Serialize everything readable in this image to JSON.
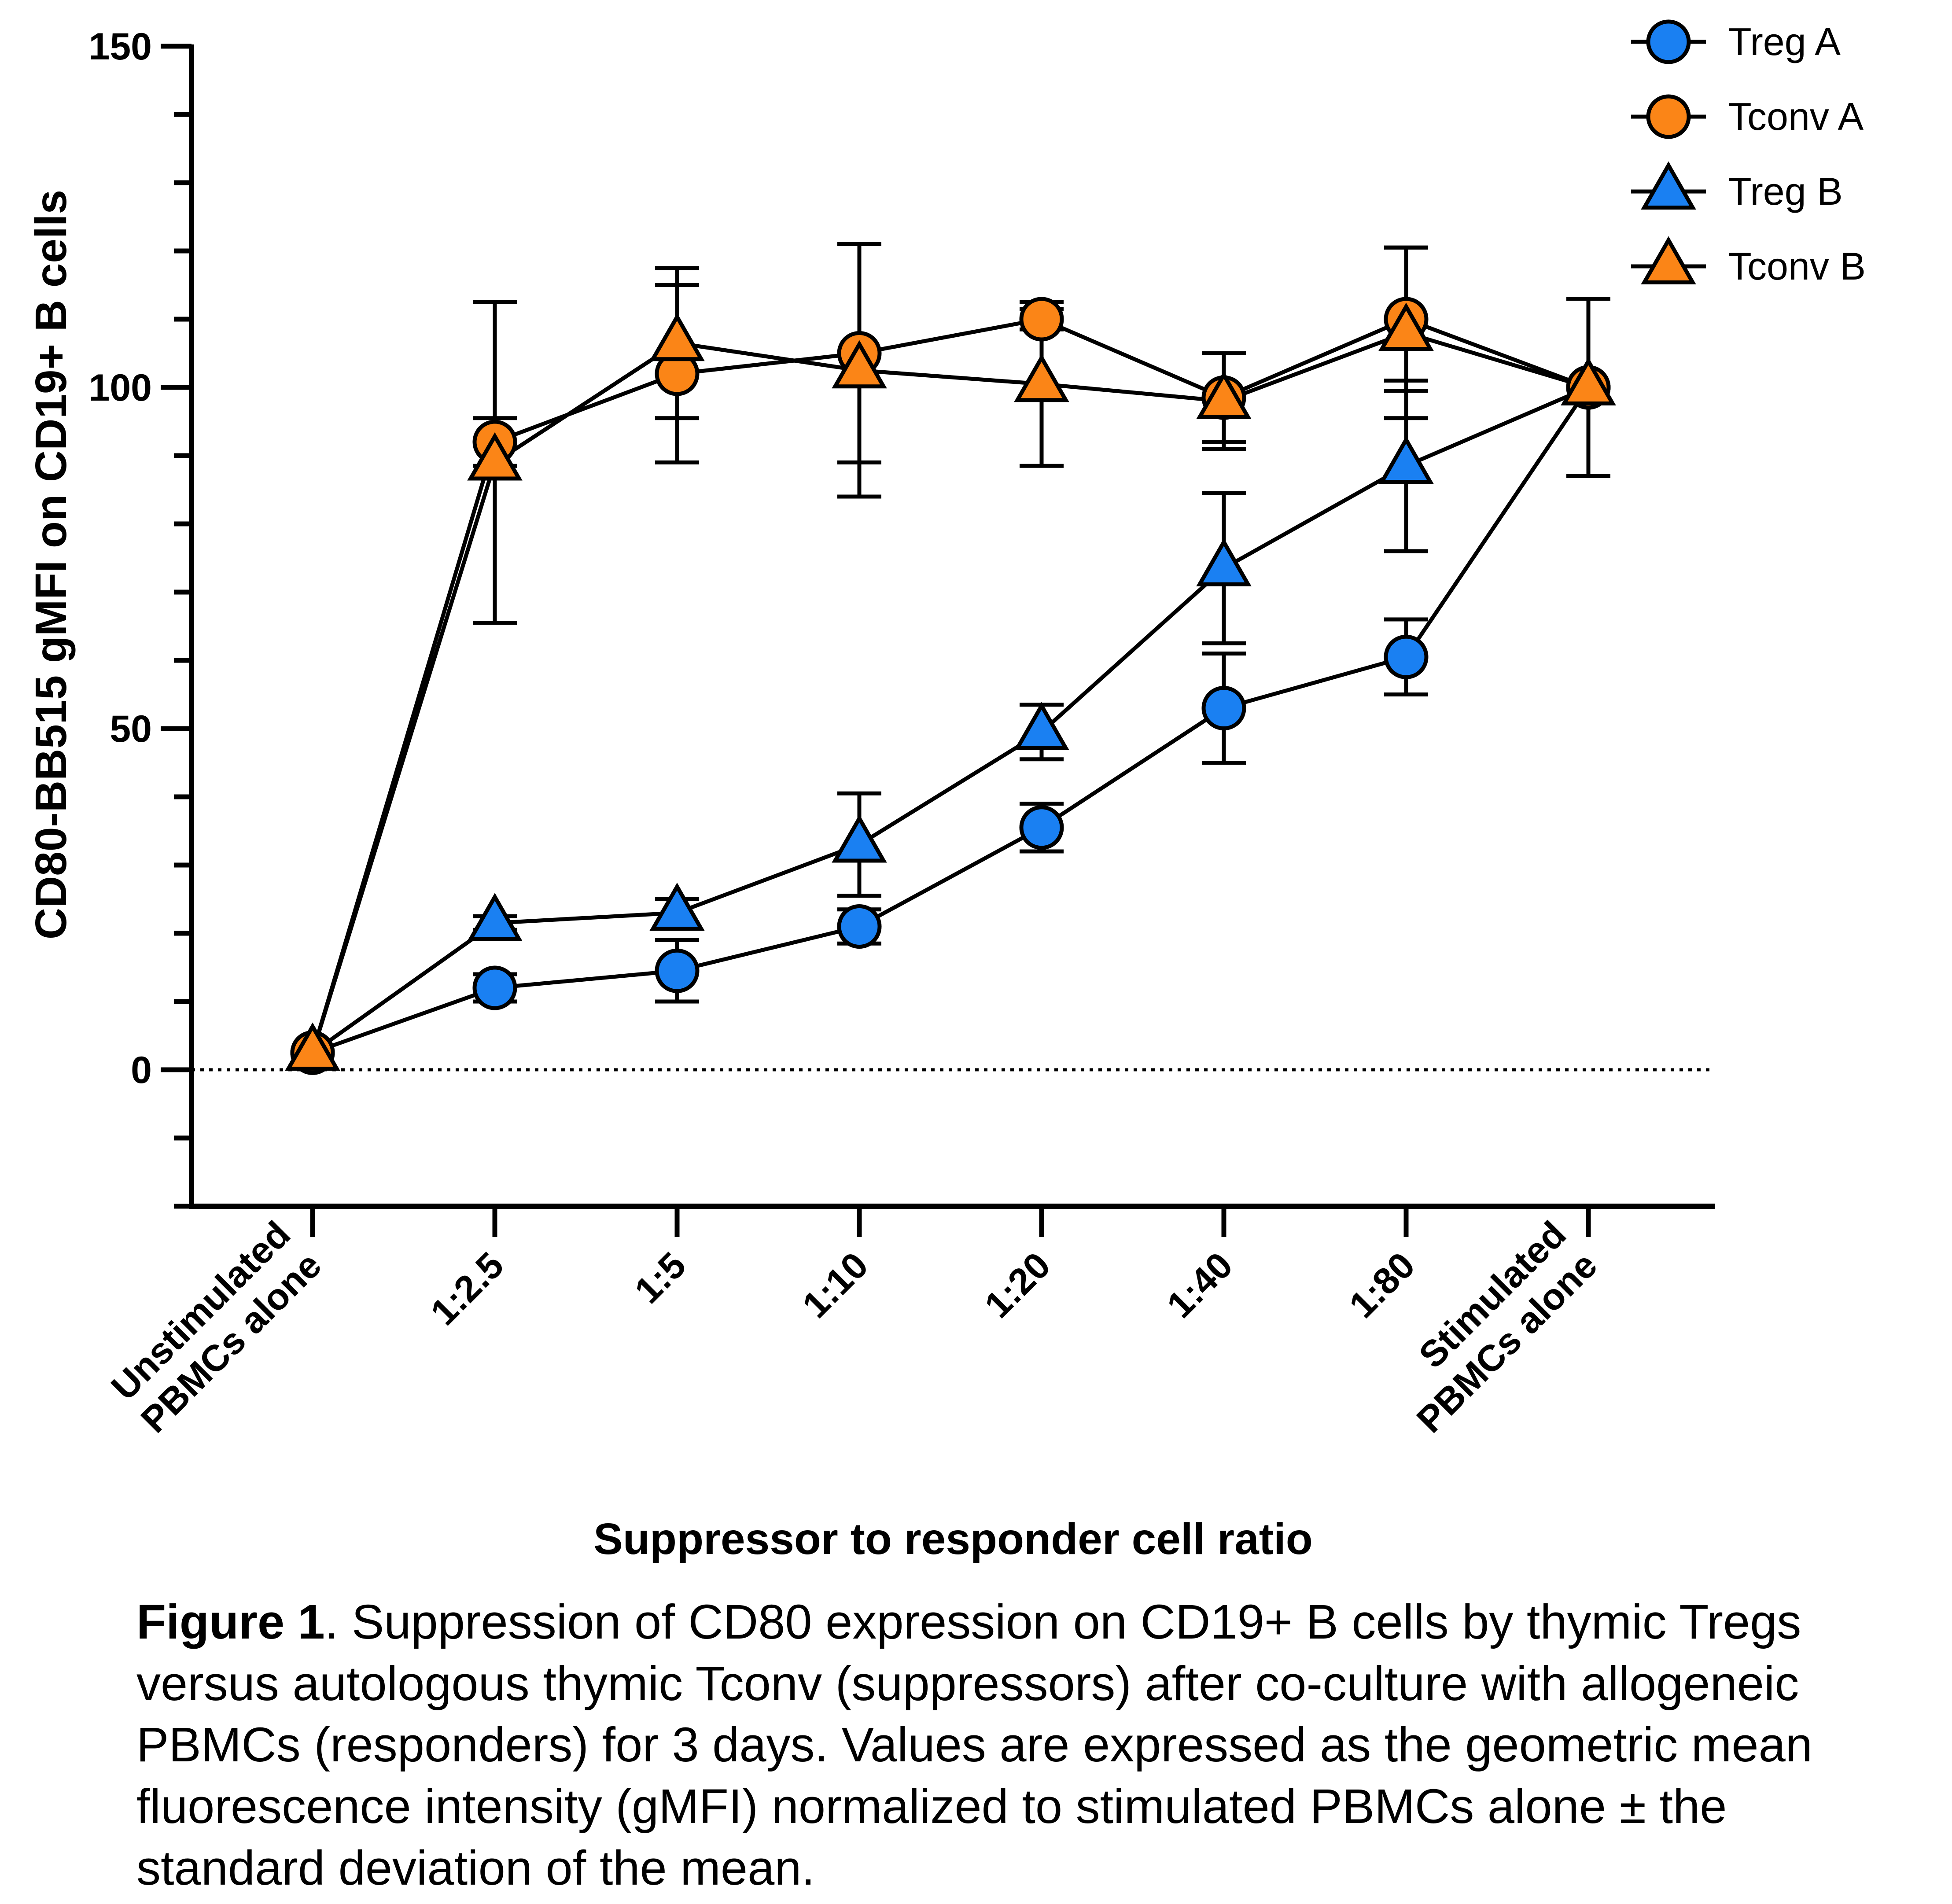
{
  "chart_data": {
    "type": "line",
    "xlabel": "Suppressor to responder cell ratio",
    "ylabel": "CD80-BB515 gMFI on CD19+ B cells",
    "categories": [
      [
        "Unstimulated",
        "PBMCs alone"
      ],
      [
        "1:2.5"
      ],
      [
        "1:5"
      ],
      [
        "1:10"
      ],
      [
        "1:20"
      ],
      [
        "1:40"
      ],
      [
        "1:80"
      ],
      [
        "Stimulated",
        "PBMCs alone"
      ]
    ],
    "yticks": [
      "0",
      "50",
      "100",
      "150"
    ],
    "ylim": [
      -20,
      150
    ],
    "reference_line": 0,
    "legend_position": "top-right",
    "series": [
      {
        "name": "Treg A",
        "marker": "circle",
        "color": "#1a80f2",
        "values": [
          2.5,
          12,
          14.5,
          21,
          35.5,
          53,
          60.5,
          100
        ],
        "err": [
          0,
          2,
          4.5,
          2.5,
          3.5,
          8,
          5.5,
          13
        ]
      },
      {
        "name": "Tconv A",
        "marker": "circle",
        "color": "#fb8517",
        "values": [
          2.5,
          92,
          102,
          105,
          110,
          98.5,
          110,
          100
        ],
        "err": [
          0,
          3.5,
          13,
          16,
          1.5,
          6.5,
          10.5,
          13
        ]
      },
      {
        "name": "Treg B",
        "marker": "triangle",
        "color": "#1a80f2",
        "values": [
          2.5,
          21.5,
          23,
          33,
          49.5,
          73.5,
          88.5,
          100
        ],
        "err": [
          0,
          1,
          2,
          7.5,
          4,
          11,
          12.5,
          13
        ]
      },
      {
        "name": "Tconv B",
        "marker": "triangle",
        "color": "#fb8517",
        "values": [
          2.5,
          89,
          106.5,
          102.5,
          100.5,
          98,
          108,
          100
        ],
        "err": [
          0,
          23.5,
          11,
          18.5,
          12,
          7,
          12.5,
          13
        ]
      }
    ]
  },
  "caption": {
    "label": "Figure 1",
    "text": ". Suppression of CD80 expression on CD19+ B cells by thymic Tregs versus autologous thymic Tconv (suppressors) after co-culture with allogeneic PBMCs (responders) for 3 days. Values are expressed as the geometric mean fluorescence intensity (gMFI) normalized to stimulated PBMCs alone ± the standard deviation of the mean."
  }
}
